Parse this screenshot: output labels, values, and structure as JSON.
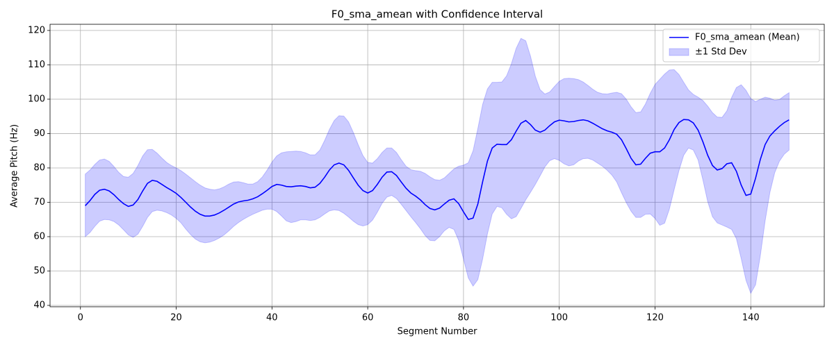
{
  "chart_data": {
    "type": "line",
    "title": "F0_sma_amean with Confidence Interval",
    "x_label": "Segment Number",
    "y_label": "Average Pitch (Hz)",
    "x": [
      1,
      2,
      3,
      4,
      5,
      6,
      7,
      8,
      9,
      10,
      11,
      12,
      13,
      14,
      15,
      16,
      17,
      18,
      19,
      20,
      21,
      22,
      23,
      24,
      25,
      26,
      27,
      28,
      29,
      30,
      31,
      32,
      33,
      34,
      35,
      36,
      37,
      38,
      39,
      40,
      41,
      42,
      43,
      44,
      45,
      46,
      47,
      48,
      49,
      50,
      51,
      52,
      53,
      54,
      55,
      56,
      57,
      58,
      59,
      60,
      61,
      62,
      63,
      64,
      65,
      66,
      67,
      68,
      69,
      70,
      71,
      72,
      73,
      74,
      75,
      76,
      77,
      78,
      79,
      80,
      81,
      82,
      83,
      84,
      85,
      86,
      87,
      88,
      89,
      90,
      91,
      92,
      93,
      94,
      95,
      96,
      97,
      98,
      99,
      100,
      101,
      102,
      103,
      104,
      105,
      106,
      107,
      108,
      109,
      110,
      111,
      112,
      113,
      114,
      115,
      116,
      117,
      118,
      119,
      120,
      121,
      122,
      123,
      124,
      125,
      126,
      127,
      128,
      129,
      130,
      131,
      132,
      133,
      134,
      135,
      136,
      137,
      138,
      139,
      140,
      141,
      142,
      143,
      144,
      145,
      146,
      147,
      148
    ],
    "series": [
      {
        "name": "F0_sma_amean (Mean)",
        "color": "#0000ff",
        "values": [
          69,
          70.5,
          72.3,
          73.5,
          73.8,
          73.3,
          72.2,
          70.8,
          69.6,
          68.8,
          69.2,
          70.8,
          73.3,
          75.5,
          76.4,
          76.1,
          75.2,
          74.3,
          73.5,
          72.6,
          71.4,
          70,
          68.6,
          67.4,
          66.5,
          66,
          66,
          66.3,
          66.9,
          67.7,
          68.6,
          69.5,
          70.1,
          70.4,
          70.6,
          71,
          71.6,
          72.5,
          73.5,
          74.6,
          75.2,
          75,
          74.6,
          74.5,
          74.7,
          74.8,
          74.6,
          74.2,
          74.4,
          75.5,
          77.3,
          79.4,
          80.9,
          81.4,
          80.9,
          79.3,
          77.1,
          75,
          73.4,
          72.7,
          73.4,
          75.2,
          77.3,
          78.8,
          78.9,
          77.8,
          75.9,
          74.1,
          72.7,
          71.8,
          70.7,
          69.3,
          68.2,
          67.8,
          68.3,
          69.5,
          70.6,
          71,
          69.6,
          67.2,
          65,
          65.4,
          69.5,
          76,
          82,
          85.8,
          86.9,
          86.8,
          86.8,
          88.2,
          90.7,
          93,
          93.8,
          92.6,
          91,
          90.4,
          91,
          92.3,
          93.4,
          93.9,
          93.7,
          93.4,
          93.5,
          93.8,
          94,
          93.7,
          93,
          92.2,
          91.4,
          90.8,
          90.4,
          89.8,
          88.2,
          85.6,
          82.8,
          80.9,
          81.1,
          82.8,
          84.3,
          84.7,
          84.7,
          85.8,
          88.2,
          91.2,
          93.2,
          94.1,
          94,
          93.1,
          91,
          87.6,
          83.7,
          80.7,
          79.4,
          79.8,
          81.2,
          81.5,
          79,
          75,
          72,
          72.4,
          77,
          82.5,
          86.8,
          89.3,
          90.8,
          92.1,
          93.2,
          94
        ]
      }
    ],
    "band": {
      "name": "±1 Std Dev",
      "color": "#0000ff",
      "alpha": 0.2,
      "upper": [
        78.2,
        79.4,
        81,
        82.3,
        82.6,
        81.9,
        80.4,
        78.7,
        77.5,
        77.3,
        78.4,
        80.7,
        83.5,
        85.3,
        85.4,
        84.3,
        82.9,
        81.6,
        80.7,
        80,
        79.2,
        78.2,
        77.1,
        76,
        75,
        74.2,
        73.8,
        73.6,
        73.9,
        74.5,
        75.3,
        75.9,
        76,
        75.7,
        75.3,
        75.3,
        76,
        77.4,
        79.4,
        81.7,
        83.5,
        84.4,
        84.7,
        84.8,
        84.9,
        84.8,
        84.4,
        83.8,
        83.8,
        85.2,
        88,
        91.2,
        93.8,
        95.2,
        95.1,
        93.4,
        90.3,
        86.8,
        83.6,
        81.6,
        81.4,
        82.7,
        84.5,
        85.8,
        85.8,
        84.5,
        82.4,
        80.5,
        79.5,
        79.2,
        79,
        78.4,
        77.4,
        76.6,
        76.4,
        77.1,
        78.4,
        79.7,
        80.5,
        80.8,
        81.5,
        85,
        91.5,
        98.5,
        103,
        104.9,
        104.9,
        105,
        106.8,
        110.3,
        114.8,
        117.7,
        117,
        112.5,
        106.7,
        102.8,
        101.5,
        102.1,
        103.7,
        105.2,
        106,
        106.1,
        106,
        105.7,
        105,
        104,
        102.9,
        102,
        101.6,
        101.5,
        101.8,
        102,
        101.6,
        100,
        97.8,
        96.1,
        96.3,
        98.6,
        101.7,
        104.3,
        105.8,
        107.3,
        108.5,
        108.6,
        107.2,
        104.9,
        102.7,
        101.4,
        100.6,
        99.6,
        98,
        96.1,
        94.8,
        94.7,
        96.6,
        100.5,
        103.4,
        104.2,
        102.6,
        100.2,
        99.3,
        100,
        100.6,
        100.3,
        99.7,
        99.9,
        101,
        101.9
      ],
      "lower": [
        60,
        61.2,
        63,
        64.5,
        65,
        64.9,
        64.4,
        63.4,
        62,
        60.5,
        59.8,
        60.7,
        63,
        65.6,
        67.3,
        67.7,
        67.5,
        67,
        66.3,
        65.3,
        64,
        62.2,
        60.6,
        59.3,
        58.5,
        58.2,
        58.4,
        58.9,
        59.6,
        60.5,
        61.7,
        63,
        64.1,
        65,
        65.8,
        66.5,
        67.1,
        67.7,
        68,
        68,
        67.3,
        66,
        64.6,
        64.1,
        64.4,
        64.9,
        64.9,
        64.7,
        64.9,
        65.6,
        66.6,
        67.5,
        67.8,
        67.6,
        66.8,
        65.7,
        64.5,
        63.5,
        63.1,
        63.5,
        64.8,
        67.1,
        69.7,
        71.5,
        72,
        71.1,
        69.4,
        67.6,
        65.8,
        64.1,
        62.3,
        60.3,
        58.9,
        58.8,
        60,
        61.7,
        62.7,
        62.1,
        58.9,
        53.5,
        48,
        45.6,
        47.5,
        53.5,
        60.8,
        66.6,
        68.8,
        68.4,
        66.5,
        65.2,
        65.8,
        68.2,
        70.7,
        72.9,
        75.2,
        77.7,
        80.3,
        82.1,
        82.7,
        82.2,
        81.2,
        80.6,
        80.9,
        82,
        82.7,
        82.8,
        82.3,
        81.4,
        80.5,
        79.3,
        77.9,
        75.9,
        72.8,
        69.9,
        67.4,
        65.6,
        65.6,
        66.5,
        66.6,
        65.3,
        63.3,
        63.9,
        68,
        73.7,
        79.2,
        83.7,
        85.8,
        85.2,
        82.3,
        76.5,
        70.2,
        65.8,
        64,
        63.4,
        62.8,
        62.1,
        59.4,
        53.6,
        47.3,
        43.5,
        46,
        54.5,
        64.6,
        72.9,
        78.6,
        82,
        84,
        85.2
      ]
    },
    "xlim": [
      -6.35,
      155.35
    ],
    "ylim": [
      39.6,
      121.8
    ],
    "xticks": [
      0,
      20,
      40,
      60,
      80,
      100,
      120,
      140
    ],
    "yticks": [
      40,
      50,
      60,
      70,
      80,
      90,
      100,
      110,
      120
    ],
    "grid": true,
    "legend": "upper right"
  }
}
